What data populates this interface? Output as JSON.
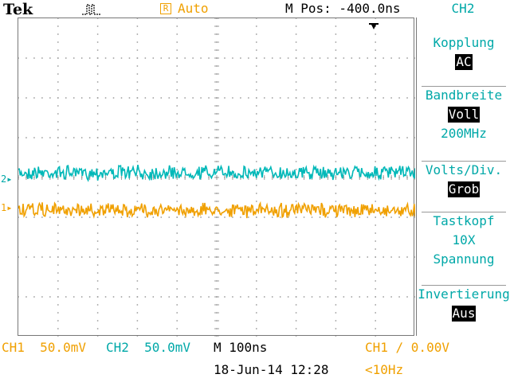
{
  "header": {
    "brand": "Tek",
    "trigger_state": "Auto",
    "trigger_box_letter": "R",
    "horizontal_position": "M Pos: -400.0ns",
    "active_channel": "CH2",
    "acquire_icon": "pulse-icon",
    "trigger_position_icon": "trigger-arrow-icon"
  },
  "menu": {
    "coupling_label": "Kopplung",
    "coupling_value": "AC",
    "bandwidth_label": "Bandbreite",
    "bandwidth_value": "Voll",
    "bandwidth_extra": "200MHz",
    "volts_label": "Volts/Div.",
    "volts_value": "Grob",
    "probe_label": "Tastkopf",
    "probe_value": "10X",
    "probe_extra": "Spannung",
    "invert_label": "Invertierung",
    "invert_value": "Aus"
  },
  "markers": {
    "ch1": "1",
    "ch2": "2"
  },
  "status": {
    "ch1_scale": "CH1  50.0mV",
    "ch2_scale": "CH2  50.0mV",
    "timebase": "M 100ns",
    "trigger": "CH1 ∕ 0.00V",
    "date": "18-Jun-14 12:28",
    "frequency": "<10Hz"
  },
  "colors": {
    "ch1": "#f0a000",
    "ch2": "#00b8b8",
    "grid": "#999999"
  }
}
